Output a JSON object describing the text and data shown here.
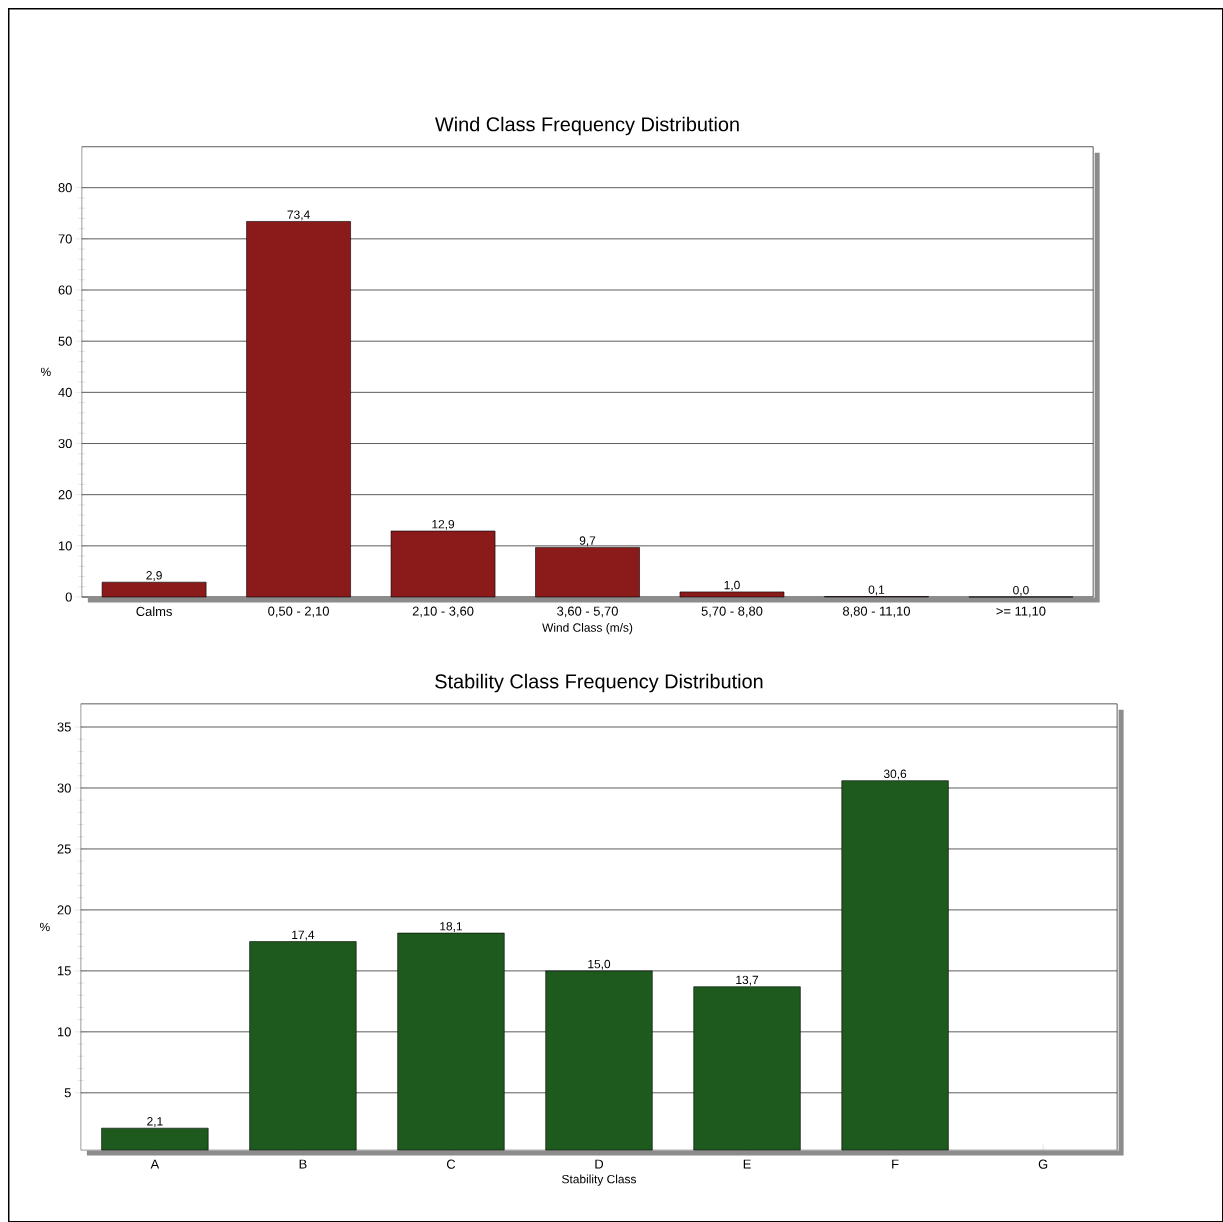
{
  "chart_data": [
    {
      "type": "bar",
      "title": "Wind Class Frequency Distribution",
      "xlabel": "Wind Class (m/s)",
      "ylabel": "%",
      "categories": [
        "Calms",
        "0,50 - 2,10",
        "2,10 - 3,60",
        "3,60 - 5,70",
        "5,70 - 8,80",
        "8,80 - 11,10",
        ">= 11,10"
      ],
      "values": [
        2.9,
        73.4,
        12.9,
        9.7,
        1.0,
        0.1,
        0.0
      ],
      "value_labels": [
        "2,9",
        "73,4",
        "12,9",
        "9,7",
        "1,0",
        "0,1",
        "0,0"
      ],
      "color": "#8b1a1a",
      "ylim": [
        0,
        88
      ],
      "yticks": [
        0,
        10,
        20,
        30,
        40,
        50,
        60,
        70,
        80
      ],
      "grid": "y"
    },
    {
      "type": "bar",
      "title": "Stability Class Frequency Distribution",
      "xlabel": "Stability Class",
      "ylabel": "%",
      "categories": [
        "A",
        "B",
        "C",
        "D",
        "E",
        "F",
        "G"
      ],
      "values": [
        2.1,
        17.4,
        18.1,
        15.0,
        13.7,
        30.6,
        null
      ],
      "value_labels": [
        "2,1",
        "17,4",
        "18,1",
        "15,0",
        "13,7",
        "30,6",
        null
      ],
      "color": "#1e5a1e",
      "ylim": [
        0.3,
        36.9
      ],
      "yticks": [
        5,
        10,
        15,
        20,
        25,
        30,
        35
      ],
      "grid": "y"
    }
  ]
}
